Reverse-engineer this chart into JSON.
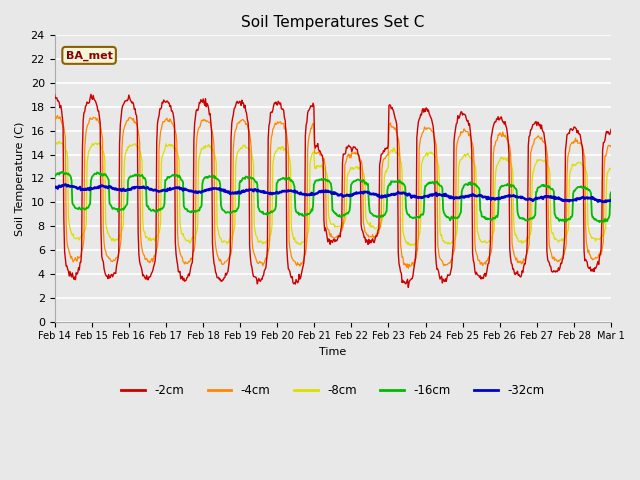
{
  "title": "Soil Temperatures Set C",
  "xlabel": "Time",
  "ylabel": "Soil Temperature (C)",
  "ylim": [
    0,
    24
  ],
  "yticks": [
    0,
    2,
    4,
    6,
    8,
    10,
    12,
    14,
    16,
    18,
    20,
    22,
    24
  ],
  "colors": {
    "-2cm": "#cc0000",
    "-4cm": "#ff8800",
    "-8cm": "#dddd00",
    "-16cm": "#00bb00",
    "-32cm": "#0000cc"
  },
  "legend_labels": [
    "-2cm",
    "-4cm",
    "-8cm",
    "-16cm",
    "-32cm"
  ],
  "annotation_text": "BA_met",
  "background_color": "#e8e8e8",
  "grid_color": "#ffffff",
  "x_tick_labels": [
    "Feb 14",
    "Feb 15",
    "Feb 16",
    "Feb 17",
    "Feb 18",
    "Feb 19",
    "Feb 20",
    "Feb 21",
    "Feb 22",
    "Feb 23",
    "Feb 24",
    "Feb 25",
    "Feb 26",
    "Feb 27",
    "Feb 28",
    "Mar 1"
  ]
}
